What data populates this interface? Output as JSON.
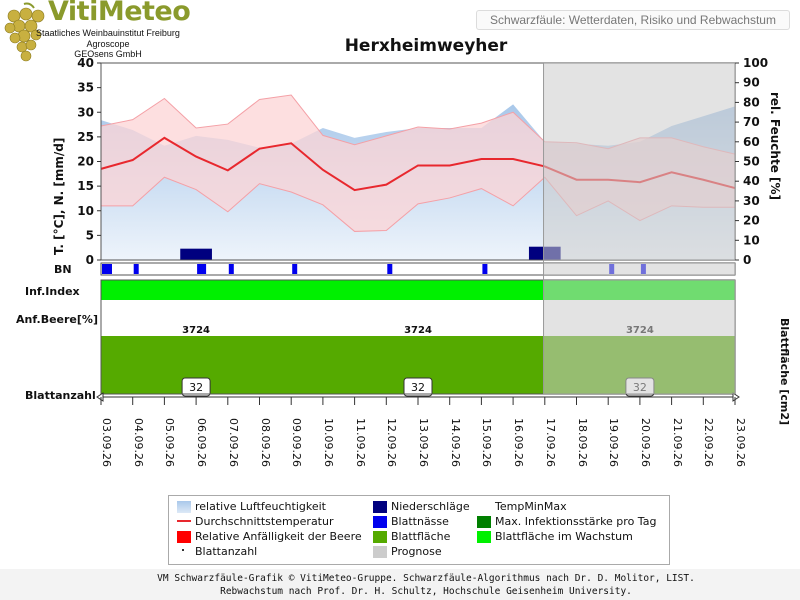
{
  "header": {
    "logo_text": "VitiMeteo",
    "logo_sub": [
      "Staatliches Weinbauinstitut Freiburg",
      "Agroscope",
      "GEOsens GmbH"
    ],
    "subtitle": "Schwarzfäule: Wetterdaten, Risiko und Rebwachstum",
    "station": "Herxheimweyher"
  },
  "rows": {
    "bn": "BN",
    "inf_index": "Inf.Index",
    "anf_beere": "Anf.Beere[%]",
    "blattanzahl": "Blattanzahl",
    "blattflaeche_axis": "Blattfläche [cm2]"
  },
  "colors": {
    "humidity": "#a9c8ea",
    "temp_mean": "#e8282e",
    "temp_band": "#fcd4d6",
    "rain": "#00007f",
    "wet": "#0000ee",
    "leaf_area": "#55aa00",
    "infection_green": "#00f000",
    "prognosis": "#cccccc"
  },
  "chart_data": {
    "type": "line",
    "x": [
      "03.09.26",
      "04.09.26",
      "05.09.26",
      "06.09.26",
      "07.09.26",
      "08.09.26",
      "09.09.26",
      "10.09.26",
      "11.09.26",
      "12.09.26",
      "13.09.26",
      "14.09.26",
      "15.09.26",
      "16.09.26",
      "17.09.26",
      "18.09.26",
      "19.09.26",
      "20.09.26",
      "21.09.26",
      "22.09.26",
      "23.09.26"
    ],
    "ylabel_left": "T. [°C], N. [mm/d]",
    "ylabel_right": "rel. Feuchte [%]",
    "yticks_left": [
      "0",
      "5",
      "10",
      "15",
      "20",
      "25",
      "30",
      "35",
      "40"
    ],
    "yticks_right": [
      "0",
      "10",
      "20",
      "30",
      "40",
      "50",
      "60",
      "70",
      "80",
      "90",
      "100"
    ],
    "ylim_left": [
      0,
      40
    ],
    "ylim_right": [
      0,
      100
    ],
    "prognosis_from": "17.09.26",
    "series": [
      {
        "name": "relative Luftfeuchtigkeit",
        "axis": "right",
        "values": [
          71,
          66,
          58,
          63,
          61,
          57,
          59,
          67,
          62,
          65,
          67,
          67,
          67,
          79,
          60,
          59,
          58,
          60,
          68,
          73,
          78
        ]
      },
      {
        "name": "Durchschnittstemperatur",
        "axis": "left",
        "values": [
          18.5,
          20.3,
          24.8,
          21,
          18.2,
          22.6,
          23.7,
          18.3,
          14.2,
          15.3,
          19.2,
          19.2,
          20.5,
          20.5,
          19,
          16.3,
          16.3,
          15.8,
          17.8,
          16.3,
          14.6
        ]
      },
      {
        "name": "TempMinMax max",
        "axis": "left",
        "values": [
          27.2,
          28.5,
          32.8,
          26.8,
          27.6,
          32.6,
          33.5,
          25.3,
          23.4,
          25.2,
          27,
          26.6,
          27.8,
          30,
          24,
          23.8,
          22.6,
          24.8,
          24.8,
          23,
          21.5
        ]
      },
      {
        "name": "TempMinMax min",
        "axis": "left",
        "values": [
          11,
          11,
          16.8,
          14.3,
          9.8,
          15.5,
          13.8,
          11.2,
          5.8,
          6,
          11.4,
          12.6,
          14.5,
          11,
          16.8,
          9,
          12,
          8,
          11,
          10.7,
          10.7
        ]
      },
      {
        "name": "Niederschläge",
        "axis": "left",
        "values": [
          0,
          0,
          0,
          2.3,
          0,
          0,
          0,
          0,
          0,
          0,
          0,
          0,
          0,
          0,
          2.7,
          0,
          0,
          0,
          0,
          0,
          0
        ]
      }
    ],
    "blattnaesse_days": [
      0,
      1,
      3,
      4,
      6,
      9,
      12,
      16,
      17
    ],
    "anf_beere_labels": [
      "3724",
      "3724",
      "3724"
    ],
    "blattanzahl_labels": [
      "32",
      "32",
      "32"
    ]
  },
  "legend": {
    "humidity": "relative Luftfeuchtigkeit",
    "temp_mean": "Durchschnittstemperatur",
    "anf_beere": "Relative Anfälligkeit der Beere",
    "blattanzahl": "Blattanzahl",
    "rain": "Niederschläge",
    "wet": "Blattnässe",
    "leaf_area": "Blattfläche",
    "prognosis": "Prognose",
    "tempminmax": "TempMinMax",
    "max_infection": "Max. Infektionsstärke pro Tag",
    "leaf_growth": "Blattfläche im Wachstum"
  },
  "footer": {
    "line1": "VM Schwarzfäule-Grafik © VitiMeteo-Gruppe. Schwarzfäule-Algorithmus nach Dr. D. Molitor, LIST.",
    "line2": "Rebwachstum nach Prof. Dr. H. Schultz, Hochschule Geisenheim University."
  }
}
